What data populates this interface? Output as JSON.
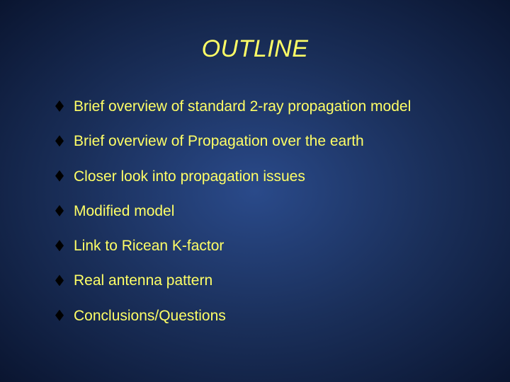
{
  "slide": {
    "title": "OUTLINE",
    "title_color": "#ffff66",
    "title_fontsize": 34,
    "title_style": "italic",
    "background_gradient": [
      "#2a4a8a",
      "#1a2f5a",
      "#0a1530"
    ],
    "bullet_color": "#000000",
    "bullet_shape": "diamond",
    "text_color": "#ffff66",
    "text_fontsize": 21,
    "items": [
      {
        "label": "Brief overview of standard 2-ray propagation model"
      },
      {
        "label": "Brief overview of Propagation over the earth"
      },
      {
        "label": "Closer look into propagation issues"
      },
      {
        "label": "Modified model"
      },
      {
        "label": "Link to Ricean K-factor"
      },
      {
        "label": "Real antenna pattern"
      },
      {
        "label": "Conclusions/Questions"
      }
    ]
  }
}
